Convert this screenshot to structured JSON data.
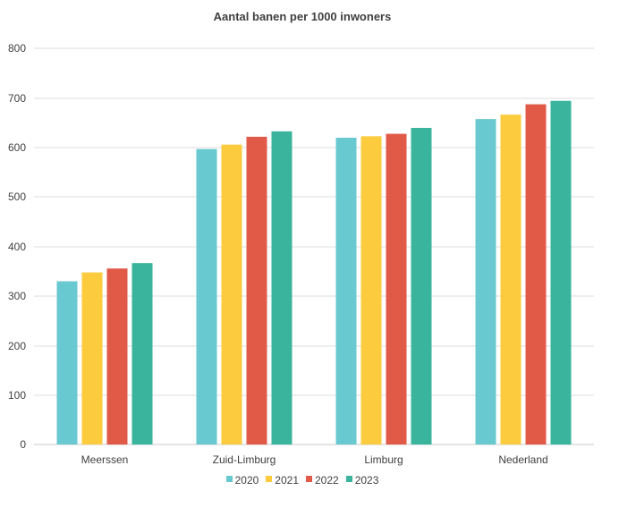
{
  "chart_data": {
    "type": "bar",
    "title": "Aantal banen per 1000 inwoners",
    "categories": [
      "Meerssen",
      "Zuid-Limburg",
      "Limburg",
      "Nederland"
    ],
    "series": [
      {
        "name": "2020",
        "color": "#69c9d0",
        "values": [
          330,
          597,
          620,
          658
        ]
      },
      {
        "name": "2021",
        "color": "#fdcb3e",
        "values": [
          348,
          606,
          623,
          667
        ]
      },
      {
        "name": "2022",
        "color": "#e15a48",
        "values": [
          356,
          622,
          628,
          688
        ]
      },
      {
        "name": "2023",
        "color": "#3bb49d",
        "values": [
          367,
          633,
          640,
          695
        ]
      }
    ],
    "yticks": [
      0,
      100,
      200,
      300,
      400,
      500,
      600,
      700,
      800
    ],
    "ylim": [
      0,
      800
    ],
    "grid": true,
    "legend_position": "bottom"
  }
}
